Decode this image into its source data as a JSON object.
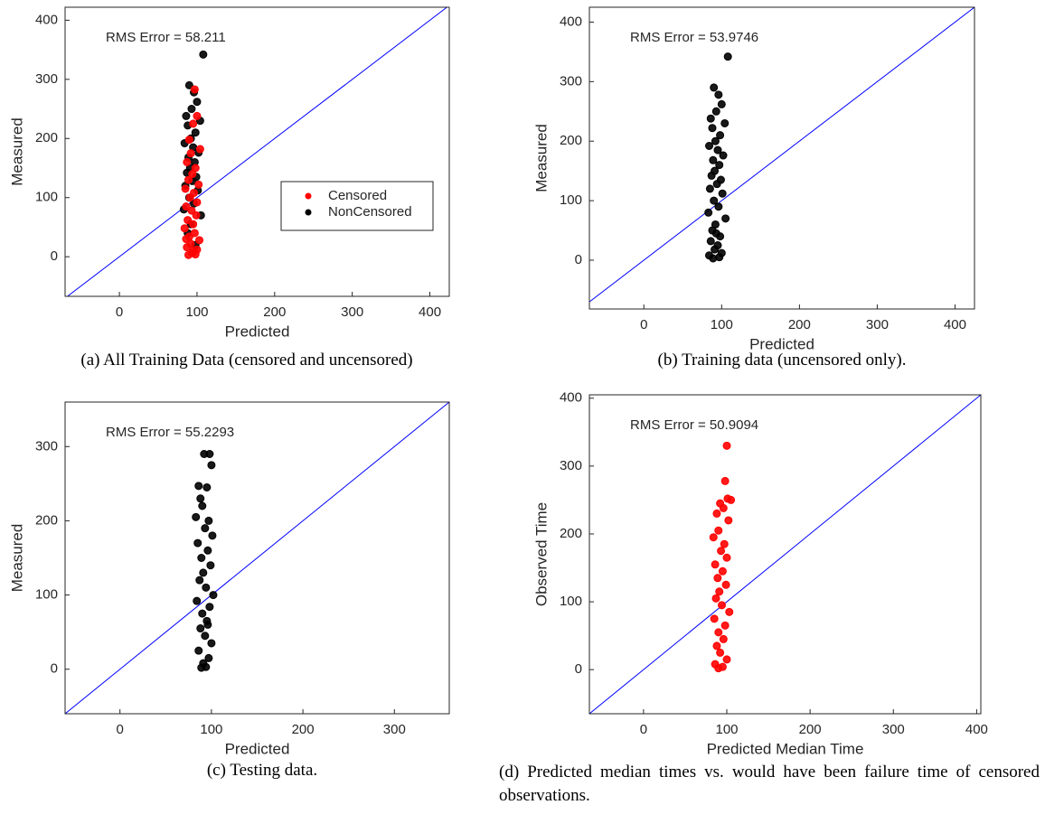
{
  "chart_data": [
    {
      "type": "scatter",
      "annotation": "RMS Error =  58.211",
      "x_label": "Predicted",
      "y_label": "Measured",
      "caption": "(a) All Training Data (censored and uncensored)",
      "xlim": [
        -70,
        425
      ],
      "ylim": [
        -67,
        422
      ],
      "xticks": [
        0,
        100,
        200,
        300,
        400
      ],
      "yticks": [
        0,
        100,
        200,
        300,
        400
      ],
      "diagonal": true,
      "diagonal_color": "#0000ff",
      "legend": "east",
      "series": [
        {
          "name": "Censored",
          "color": "#ff0000",
          "x": [
            97,
            100,
            95,
            90,
            104,
            92,
            87,
            98,
            94,
            89,
            102,
            85,
            96,
            91,
            100,
            86,
            93,
            99,
            88,
            95,
            84,
            97,
            90,
            103,
            92,
            87,
            96,
            94,
            89,
            100,
            86,
            98
          ],
          "values": [
            283,
            238,
            225,
            198,
            182,
            175,
            160,
            150,
            140,
            130,
            122,
            115,
            108,
            100,
            92,
            85,
            78,
            70,
            62,
            55,
            48,
            40,
            34,
            28,
            22,
            16,
            10,
            6,
            3,
            12,
            30,
            4
          ]
        },
        {
          "name": "NonCensored",
          "color": "#000000",
          "x": [
            108,
            90,
            96,
            100,
            93,
            86,
            104,
            88,
            98,
            92,
            84,
            95,
            102,
            89,
            97,
            91,
            87,
            99,
            94,
            85,
            101,
            90,
            96,
            83,
            105,
            92,
            88,
            98
          ],
          "values": [
            342,
            290,
            278,
            262,
            250,
            238,
            230,
            222,
            210,
            200,
            192,
            185,
            176,
            168,
            160,
            150,
            142,
            135,
            128,
            120,
            112,
            100,
            90,
            80,
            70,
            55,
            40,
            20
          ]
        }
      ]
    },
    {
      "type": "scatter",
      "annotation": "RMS Error =  53.9746",
      "x_label": "Predicted",
      "y_label": "Measured",
      "caption": "(b) Training data (uncensored only).",
      "xlim": [
        -70,
        425
      ],
      "ylim": [
        -82,
        425
      ],
      "xticks": [
        0,
        100,
        200,
        300,
        400
      ],
      "yticks": [
        0,
        100,
        200,
        300,
        400
      ],
      "diagonal": true,
      "diagonal_color": "#0000ff",
      "series": [
        {
          "color": "#000000",
          "x": [
            108,
            90,
            96,
            100,
            93,
            86,
            104,
            88,
            98,
            92,
            84,
            95,
            102,
            89,
            97,
            91,
            87,
            99,
            94,
            85,
            101,
            90,
            96,
            83,
            105,
            92,
            88,
            98,
            86,
            95,
            91,
            100,
            84,
            97,
            89,
            93
          ],
          "values": [
            342,
            290,
            278,
            262,
            250,
            238,
            230,
            222,
            210,
            200,
            192,
            185,
            176,
            168,
            160,
            150,
            142,
            135,
            128,
            120,
            112,
            100,
            90,
            80,
            70,
            60,
            50,
            40,
            32,
            25,
            18,
            12,
            8,
            5,
            3,
            45
          ]
        }
      ]
    },
    {
      "type": "scatter",
      "annotation": "RMS Error =  55.2293",
      "x_label": "Predicted",
      "y_label": "Measured",
      "caption": "(c) Testing data.",
      "xlim": [
        -60,
        360
      ],
      "ylim": [
        -60,
        360
      ],
      "xticks": [
        0,
        100,
        200,
        300
      ],
      "yticks": [
        0,
        100,
        200,
        300
      ],
      "diagonal": true,
      "diagonal_color": "#0000ff",
      "series": [
        {
          "color": "#000000",
          "x": [
            98,
            92,
            100,
            86,
            95,
            88,
            90,
            83,
            97,
            93,
            101,
            85,
            96,
            89,
            99,
            91,
            87,
            94,
            102,
            84,
            98,
            90,
            95,
            88,
            93,
            100,
            86,
            97,
            91,
            94,
            89,
            96
          ],
          "values": [
            290,
            290,
            275,
            247,
            245,
            230,
            220,
            205,
            200,
            190,
            180,
            170,
            160,
            150,
            140,
            130,
            120,
            110,
            100,
            92,
            84,
            75,
            65,
            55,
            45,
            35,
            25,
            15,
            8,
            3,
            2,
            60
          ]
        }
      ]
    },
    {
      "type": "scatter",
      "annotation": "RMS Error =  50.9094",
      "x_label": "Predicted Median Time",
      "y_label": "Observed Time",
      "caption": "(d) Predicted median times vs. would have been failure time of censored observations.",
      "xlim": [
        -65,
        405
      ],
      "ylim": [
        -65,
        405
      ],
      "xticks": [
        0,
        100,
        200,
        300,
        400
      ],
      "yticks": [
        0,
        100,
        200,
        300,
        400
      ],
      "diagonal": true,
      "diagonal_color": "#0000ff",
      "series": [
        {
          "color": "#ff0000",
          "x": [
            100,
            98,
            92,
            101,
            96,
            105,
            88,
            102,
            90,
            84,
            97,
            93,
            100,
            86,
            95,
            89,
            99,
            91,
            87,
            94,
            103,
            85,
            98,
            90,
            96,
            88,
            92,
            100,
            86,
            95,
            90
          ],
          "values": [
            330,
            278,
            245,
            252,
            238,
            250,
            230,
            220,
            205,
            195,
            185,
            175,
            165,
            155,
            145,
            135,
            125,
            115,
            105,
            95,
            85,
            75,
            65,
            55,
            45,
            35,
            25,
            15,
            8,
            4,
            2
          ]
        }
      ]
    }
  ]
}
